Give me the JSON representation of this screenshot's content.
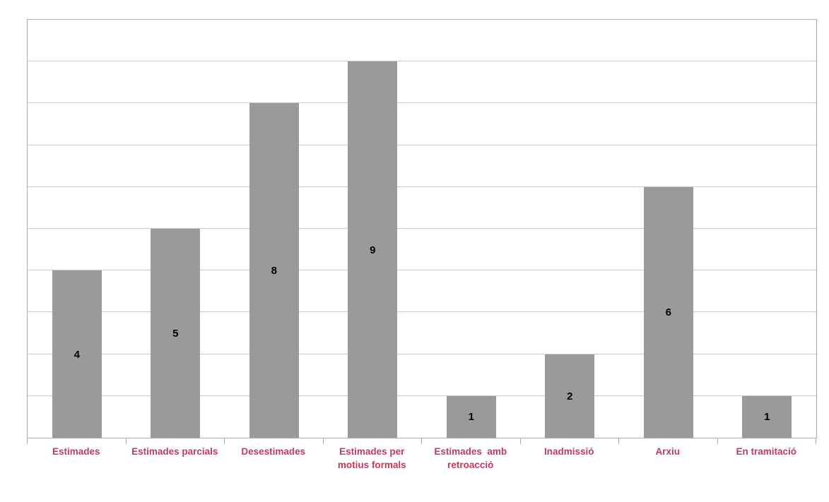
{
  "chart_data": {
    "type": "bar",
    "title": "",
    "xlabel": "",
    "ylabel": "",
    "categories": [
      "Estimades",
      "Estimades parcials",
      "Desestimades",
      "Estimades per\nmotius formals",
      "Estimades  amb\nretroacció",
      "Inadmissió",
      "Arxiu",
      "En tramitació"
    ],
    "values": [
      4,
      5,
      8,
      9,
      1,
      2,
      6,
      1
    ],
    "value_labels": [
      "4",
      "5",
      "8",
      "9",
      "1",
      "2",
      "6",
      "1"
    ],
    "value_label_position": "center-of-bar",
    "ylim": [
      0,
      10
    ],
    "gridline_step": 1,
    "grid": "horizontal",
    "legend_position": "none",
    "y_tick_labels_visible": false,
    "colors": {
      "bar_fill": "#9A9A9A",
      "value_label": "#000000",
      "category_label": "#C23A5C",
      "gridline": "#C9C9C9",
      "axis_border": "#ABABAB",
      "background": "#FFFFFF"
    }
  }
}
